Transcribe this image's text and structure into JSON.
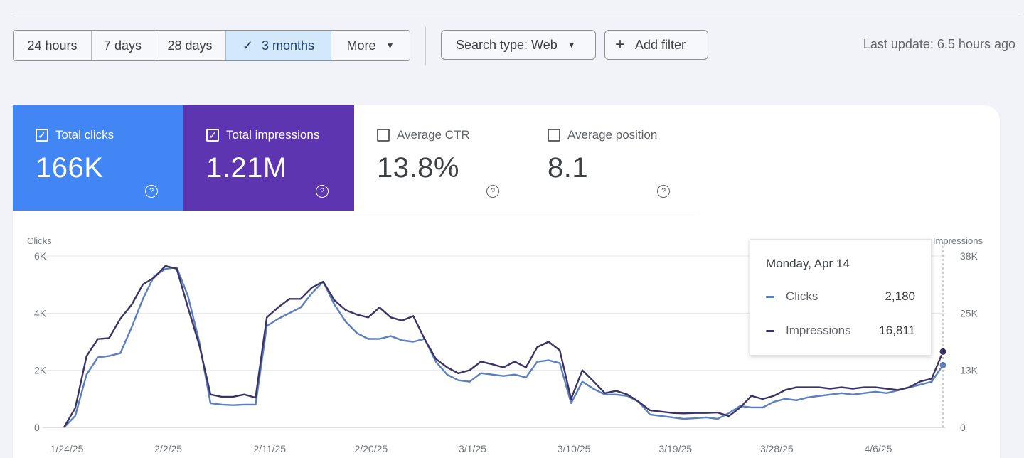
{
  "toolbar": {
    "ranges": [
      "24 hours",
      "7 days",
      "28 days",
      "3 months",
      "More"
    ],
    "search_type": "Search type: Web",
    "add_filter": "Add filter",
    "last_update": "Last update: 6.5 hours ago"
  },
  "metrics": [
    {
      "label": "Total clicks",
      "value": "166K",
      "checked": true
    },
    {
      "label": "Total impressions",
      "value": "1.21M",
      "checked": true
    },
    {
      "label": "Average CTR",
      "value": "13.8%",
      "checked": false
    },
    {
      "label": "Average position",
      "value": "8.1",
      "checked": false
    }
  ],
  "tooltip": {
    "title": "Monday, Apr 14",
    "clicks_label": "Clicks",
    "clicks_value": "2,180",
    "impressions_label": "Impressions",
    "impressions_value": "16,811"
  },
  "chart_data": {
    "type": "line",
    "left_axis_label": "Clicks",
    "right_axis_label": "Impressions",
    "left_ticks": [
      "6K",
      "4K",
      "2K",
      "0"
    ],
    "right_ticks": [
      "38K",
      "25K",
      "13K",
      "0"
    ],
    "ylim_left": [
      0,
      6000
    ],
    "ylim_right": [
      0,
      38000
    ],
    "x_ticks": [
      "1/24/25",
      "2/2/25",
      "2/11/25",
      "2/20/25",
      "3/1/25",
      "3/10/25",
      "3/19/25",
      "3/28/25",
      "4/6/25"
    ],
    "x_tick_days": [
      0,
      9,
      18,
      27,
      36,
      45,
      54,
      63,
      72
    ],
    "grid": true,
    "colors": {
      "clicks": "#5b7fbf",
      "impressions": "#3a3366"
    },
    "series": [
      {
        "name": "Clicks",
        "axis": "left",
        "points": [
          [
            0,
            0
          ],
          [
            1,
            400
          ],
          [
            2,
            1850
          ],
          [
            3,
            2450
          ],
          [
            4,
            2500
          ],
          [
            5,
            2600
          ],
          [
            6,
            3500
          ],
          [
            7,
            4500
          ],
          [
            8,
            5300
          ],
          [
            9,
            5550
          ],
          [
            10,
            5600
          ],
          [
            11,
            4600
          ],
          [
            12,
            3000
          ],
          [
            13,
            850
          ],
          [
            14,
            800
          ],
          [
            15,
            780
          ],
          [
            16,
            800
          ],
          [
            17,
            800
          ],
          [
            18,
            3550
          ],
          [
            19,
            3800
          ],
          [
            20,
            4000
          ],
          [
            21,
            4200
          ],
          [
            22,
            4700
          ],
          [
            23,
            5100
          ],
          [
            24,
            4300
          ],
          [
            25,
            3700
          ],
          [
            26,
            3300
          ],
          [
            27,
            3100
          ],
          [
            28,
            3100
          ],
          [
            29,
            3200
          ],
          [
            30,
            3050
          ],
          [
            31,
            3000
          ],
          [
            32,
            3100
          ],
          [
            33,
            2300
          ],
          [
            34,
            1850
          ],
          [
            35,
            1650
          ],
          [
            36,
            1600
          ],
          [
            37,
            1900
          ],
          [
            38,
            1850
          ],
          [
            39,
            1800
          ],
          [
            40,
            1850
          ],
          [
            41,
            1750
          ],
          [
            42,
            2300
          ],
          [
            43,
            2350
          ],
          [
            44,
            2250
          ],
          [
            45,
            850
          ],
          [
            46,
            1600
          ],
          [
            47,
            1350
          ],
          [
            48,
            1150
          ],
          [
            49,
            1150
          ],
          [
            50,
            1100
          ],
          [
            51,
            900
          ],
          [
            52,
            450
          ],
          [
            53,
            400
          ],
          [
            54,
            350
          ],
          [
            55,
            300
          ],
          [
            56,
            320
          ],
          [
            57,
            350
          ],
          [
            58,
            300
          ],
          [
            59,
            500
          ],
          [
            60,
            750
          ],
          [
            61,
            700
          ],
          [
            62,
            700
          ],
          [
            63,
            900
          ],
          [
            64,
            1000
          ],
          [
            65,
            950
          ],
          [
            66,
            1050
          ],
          [
            67,
            1100
          ],
          [
            68,
            1150
          ],
          [
            69,
            1200
          ],
          [
            70,
            1150
          ],
          [
            71,
            1200
          ],
          [
            72,
            1250
          ],
          [
            73,
            1200
          ],
          [
            74,
            1300
          ],
          [
            75,
            1400
          ],
          [
            76,
            1500
          ],
          [
            77,
            1600
          ],
          [
            78,
            2180
          ]
        ]
      },
      {
        "name": "Impressions",
        "axis": "right",
        "points": [
          [
            0,
            0
          ],
          [
            1,
            4300
          ],
          [
            2,
            15800
          ],
          [
            3,
            19600
          ],
          [
            4,
            19800
          ],
          [
            5,
            24100
          ],
          [
            6,
            27200
          ],
          [
            7,
            31700
          ],
          [
            8,
            33200
          ],
          [
            9,
            35800
          ],
          [
            10,
            35200
          ],
          [
            11,
            26600
          ],
          [
            12,
            18300
          ],
          [
            13,
            7300
          ],
          [
            14,
            6800
          ],
          [
            15,
            6800
          ],
          [
            16,
            7300
          ],
          [
            17,
            6600
          ],
          [
            18,
            24400
          ],
          [
            19,
            26600
          ],
          [
            20,
            28500
          ],
          [
            21,
            28500
          ],
          [
            22,
            31000
          ],
          [
            23,
            32300
          ],
          [
            24,
            28200
          ],
          [
            25,
            26000
          ],
          [
            26,
            25000
          ],
          [
            27,
            24400
          ],
          [
            28,
            26600
          ],
          [
            29,
            24400
          ],
          [
            30,
            23700
          ],
          [
            31,
            24700
          ],
          [
            32,
            19600
          ],
          [
            33,
            15200
          ],
          [
            34,
            13300
          ],
          [
            35,
            12000
          ],
          [
            36,
            12700
          ],
          [
            37,
            14600
          ],
          [
            38,
            14000
          ],
          [
            39,
            13300
          ],
          [
            40,
            14600
          ],
          [
            41,
            13300
          ],
          [
            42,
            17800
          ],
          [
            43,
            19000
          ],
          [
            44,
            17100
          ],
          [
            45,
            6300
          ],
          [
            46,
            12700
          ],
          [
            47,
            10200
          ],
          [
            48,
            7600
          ],
          [
            49,
            8100
          ],
          [
            50,
            7300
          ],
          [
            51,
            5700
          ],
          [
            52,
            3800
          ],
          [
            53,
            3500
          ],
          [
            54,
            3200
          ],
          [
            55,
            3100
          ],
          [
            56,
            3200
          ],
          [
            57,
            3200
          ],
          [
            58,
            3300
          ],
          [
            59,
            2500
          ],
          [
            60,
            4400
          ],
          [
            61,
            7000
          ],
          [
            62,
            6300
          ],
          [
            63,
            7000
          ],
          [
            64,
            8300
          ],
          [
            65,
            8900
          ],
          [
            66,
            8900
          ],
          [
            67,
            8900
          ],
          [
            68,
            8600
          ],
          [
            69,
            8900
          ],
          [
            70,
            8600
          ],
          [
            71,
            8900
          ],
          [
            72,
            8900
          ],
          [
            73,
            8600
          ],
          [
            74,
            8300
          ],
          [
            75,
            8900
          ],
          [
            76,
            10200
          ],
          [
            77,
            10800
          ],
          [
            78,
            16811
          ]
        ]
      }
    ]
  }
}
